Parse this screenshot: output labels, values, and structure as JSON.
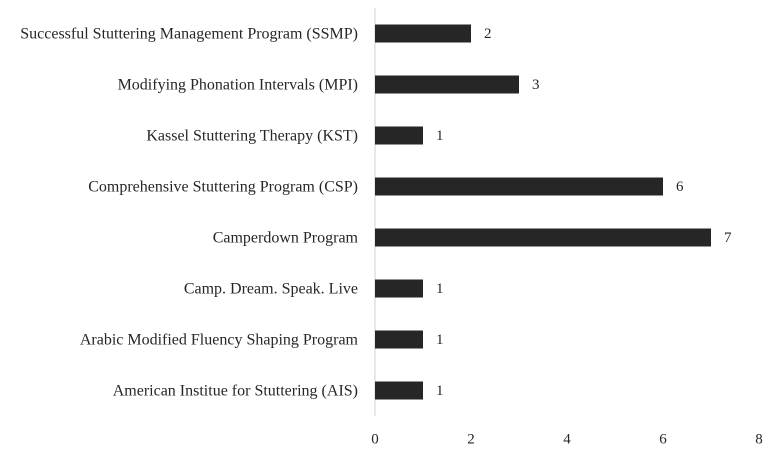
{
  "chart_data": {
    "type": "barh",
    "categories": [
      "Successful Stuttering Management Program (SSMP)",
      "Modifying Phonation Intervals (MPI)",
      "Kassel Stuttering Therapy (KST)",
      "Comprehensive Stuttering Program (CSP)",
      "Camperdown Program",
      "Camp. Dream. Speak. Live",
      "Arabic Modified Fluency Shaping Program",
      "American Institue for Stuttering (AIS)"
    ],
    "values": [
      2,
      3,
      1,
      6,
      7,
      1,
      1,
      1
    ],
    "color": "#262626",
    "xlim": [
      0,
      8
    ],
    "xticks": [
      0,
      2,
      4,
      6,
      8
    ],
    "grid": false
  }
}
